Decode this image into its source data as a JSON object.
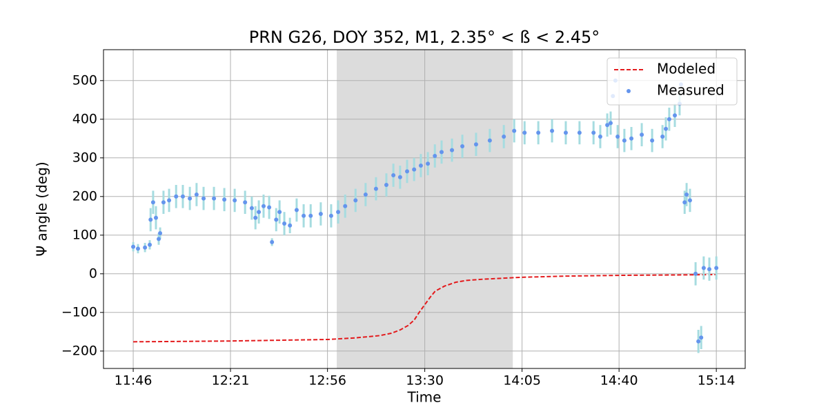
{
  "chart_data": {
    "type": "scatter-line",
    "title": "PRN G26, DOY 352, M1, 2.35° < ß < 2.45°",
    "x_label": "Time",
    "y_label": "Ψ angle (deg)",
    "xlim": [
      695.4,
      924.3
    ],
    "ylim": [
      -245,
      580
    ],
    "xticks": [
      {
        "value": 706,
        "label": "11:46"
      },
      {
        "value": 740.7,
        "label": "12:21"
      },
      {
        "value": 775.3,
        "label": "12:56"
      },
      {
        "value": 810,
        "label": "13:30"
      },
      {
        "value": 844.7,
        "label": "14:05"
      },
      {
        "value": 879.3,
        "label": "14:40"
      },
      {
        "value": 914,
        "label": "15:14"
      }
    ],
    "yticks": [
      {
        "value": -200,
        "label": "−200"
      },
      {
        "value": -100,
        "label": "−100"
      },
      0,
      100,
      200,
      300,
      400,
      500
    ],
    "grid": true,
    "legend": "upper right",
    "shaded_region": [
      778.6,
      841.4
    ],
    "shade_color": "#dcdcdc",
    "series": [
      {
        "name": "Modeled",
        "kind": "line",
        "color": "#e31a1c",
        "x": [
          706,
          740,
          775.4,
          785,
          793.9,
          798,
          801.3,
          804,
          806.2,
          808,
          810,
          812,
          813.7,
          817,
          821,
          825,
          830.8,
          844.6,
          860,
          880,
          900,
          914
        ],
        "values": [
          -176,
          -174,
          -170,
          -166,
          -160,
          -154,
          -145,
          -134,
          -120,
          -100,
          -80,
          -60,
          -45,
          -32,
          -22,
          -17,
          -14,
          -9,
          -6,
          -4,
          -3,
          -2
        ]
      },
      {
        "name": "Measured",
        "kind": "points",
        "color": "#6495ed",
        "error_color": "#a6dce0",
        "x": [
          706,
          707.7,
          710.2,
          711.9,
          712.2,
          713.1,
          714.1,
          715.1,
          715.6,
          716.8,
          718.8,
          721.3,
          723.7,
          726.2,
          728.6,
          731.1,
          734.8,
          738.5,
          742.2,
          745.9,
          748.3,
          749.6,
          750.8,
          752.5,
          754.5,
          755.5,
          757,
          758.2,
          759.9,
          761.9,
          764.3,
          766.8,
          769.3,
          772.9,
          776.6,
          779.1,
          781.6,
          785.3,
          788.9,
          792.6,
          796.3,
          798.8,
          801.2,
          803.7,
          806.2,
          808.6,
          811.1,
          813.6,
          816,
          819.7,
          823.4,
          828.3,
          833.2,
          838.2,
          841.9,
          845.6,
          850.5,
          855.4,
          860.3,
          865.2,
          870.2,
          872.6,
          875.1,
          876.3,
          877.1,
          878,
          878.8,
          881.2,
          883.7,
          887.4,
          891.1,
          894.8,
          896,
          897.2,
          899.2,
          900.9,
          901.4,
          902.7,
          903.4,
          904.6,
          906.6,
          907.6,
          908.6,
          909.5,
          911.5,
          914
        ],
        "values": [
          70,
          65,
          68,
          75,
          140,
          185,
          145,
          90,
          105,
          185,
          190,
          200,
          200,
          195,
          205,
          195,
          195,
          192,
          190,
          185,
          170,
          145,
          160,
          175,
          172,
          82,
          140,
          160,
          130,
          125,
          165,
          150,
          150,
          155,
          150,
          160,
          175,
          190,
          205,
          220,
          230,
          255,
          250,
          265,
          270,
          280,
          285,
          305,
          315,
          320,
          330,
          335,
          345,
          355,
          370,
          365,
          365,
          370,
          365,
          365,
          365,
          355,
          385,
          390,
          460,
          500,
          355,
          345,
          350,
          360,
          345,
          355,
          375,
          400,
          410,
          440,
          490,
          185,
          205,
          190,
          0,
          -175,
          -165,
          15,
          12,
          15
        ],
        "errors": [
          12,
          12,
          12,
          12,
          30,
          30,
          30,
          15,
          15,
          30,
          30,
          30,
          30,
          30,
          30,
          30,
          30,
          30,
          30,
          30,
          30,
          30,
          30,
          30,
          30,
          10,
          30,
          30,
          30,
          20,
          30,
          30,
          30,
          30,
          30,
          30,
          30,
          30,
          30,
          30,
          30,
          30,
          30,
          30,
          30,
          30,
          30,
          30,
          30,
          30,
          30,
          30,
          30,
          30,
          30,
          30,
          30,
          30,
          30,
          30,
          30,
          30,
          30,
          30,
          0,
          0,
          30,
          30,
          30,
          30,
          30,
          30,
          30,
          30,
          30,
          30,
          0,
          30,
          30,
          30,
          30,
          30,
          30,
          30,
          30,
          30
        ]
      }
    ]
  }
}
